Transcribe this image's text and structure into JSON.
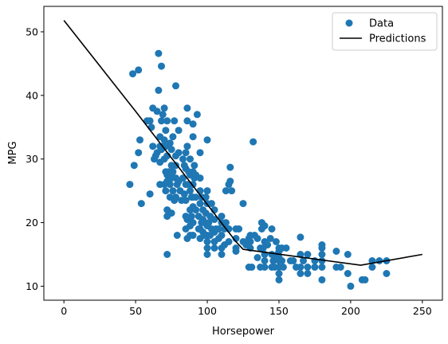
{
  "chart_data": {
    "type": "scatter",
    "xlabel": "Horsepower",
    "ylabel": "MPG",
    "xlim": [
      -14,
      264
    ],
    "ylim": [
      7.8,
      54.0
    ],
    "xticks": [
      0,
      50,
      100,
      150,
      200,
      250
    ],
    "yticks": [
      10,
      20,
      30,
      40,
      50
    ],
    "grid": false,
    "legend_position": "top-right",
    "colors": {
      "data": "#1f77b4",
      "predictions": "#000000"
    },
    "series": [
      {
        "name": "Data",
        "kind": "scatter",
        "points": [
          [
            46,
            26
          ],
          [
            48,
            43.4
          ],
          [
            49,
            29
          ],
          [
            52,
            44
          ],
          [
            52,
            31
          ],
          [
            53,
            33
          ],
          [
            54,
            23
          ],
          [
            58,
            36
          ],
          [
            60,
            36
          ],
          [
            60,
            24.5
          ],
          [
            61,
            35
          ],
          [
            62,
            32
          ],
          [
            62,
            38
          ],
          [
            63,
            30
          ],
          [
            64,
            30.5
          ],
          [
            65,
            31
          ],
          [
            65,
            37.5
          ],
          [
            66,
            40.8
          ],
          [
            66,
            46.6
          ],
          [
            67,
            33.5
          ],
          [
            67,
            32
          ],
          [
            67,
            26
          ],
          [
            67,
            29.5
          ],
          [
            68,
            44.6
          ],
          [
            68,
            36
          ],
          [
            68,
            31.5
          ],
          [
            69,
            32
          ],
          [
            69,
            37
          ],
          [
            70,
            26
          ],
          [
            70,
            38
          ],
          [
            70,
            33
          ],
          [
            70,
            30
          ],
          [
            71,
            25
          ],
          [
            71,
            28
          ],
          [
            71,
            32
          ],
          [
            71,
            34.5
          ],
          [
            72,
            30.5
          ],
          [
            72,
            27.5
          ],
          [
            72,
            36
          ],
          [
            72,
            22
          ],
          [
            72,
            15
          ],
          [
            72,
            21
          ],
          [
            72,
            26.5
          ],
          [
            73,
            28
          ],
          [
            74,
            32.5
          ],
          [
            74,
            26
          ],
          [
            74,
            24
          ],
          [
            75,
            29
          ],
          [
            75,
            31.5
          ],
          [
            75,
            27
          ],
          [
            75,
            21.5
          ],
          [
            76,
            33.5
          ],
          [
            76,
            25
          ],
          [
            76,
            28
          ],
          [
            77,
            36
          ],
          [
            77,
            23.5
          ],
          [
            78,
            30.5
          ],
          [
            78,
            29
          ],
          [
            78,
            27
          ],
          [
            78,
            24
          ],
          [
            78,
            41.5
          ],
          [
            79,
            26
          ],
          [
            79,
            18
          ],
          [
            80,
            26.5
          ],
          [
            80,
            34.5
          ],
          [
            80,
            31
          ],
          [
            81,
            25
          ],
          [
            82,
            23.5
          ],
          [
            83,
            30
          ],
          [
            83,
            27
          ],
          [
            84,
            29
          ],
          [
            84,
            24.5
          ],
          [
            85,
            31
          ],
          [
            85,
            28.5
          ],
          [
            85,
            26
          ],
          [
            85,
            23.5
          ],
          [
            85,
            21
          ],
          [
            85,
            19
          ],
          [
            86,
            36
          ],
          [
            86,
            38
          ],
          [
            86,
            32
          ],
          [
            86,
            20.5
          ],
          [
            86,
            17.5
          ],
          [
            87,
            28
          ],
          [
            87,
            26
          ],
          [
            88,
            25
          ],
          [
            88,
            30
          ],
          [
            88,
            27.5
          ],
          [
            88,
            22
          ],
          [
            88,
            19.5
          ],
          [
            88,
            18
          ],
          [
            89,
            24
          ],
          [
            89,
            21
          ],
          [
            90,
            24
          ],
          [
            90,
            26
          ],
          [
            90,
            28
          ],
          [
            90,
            35.5
          ],
          [
            90,
            33.5
          ],
          [
            90,
            20
          ],
          [
            90,
            22.5
          ],
          [
            90,
            18
          ],
          [
            91,
            29
          ],
          [
            91,
            27
          ],
          [
            92,
            27.5
          ],
          [
            92,
            24
          ],
          [
            92,
            22
          ],
          [
            93,
            37
          ],
          [
            94,
            21
          ],
          [
            94,
            19
          ],
          [
            95,
            31
          ],
          [
            95,
            27
          ],
          [
            95,
            25
          ],
          [
            95,
            23
          ],
          [
            95,
            19
          ],
          [
            95,
            17.5
          ],
          [
            96,
            24
          ],
          [
            96,
            20
          ],
          [
            97,
            22
          ],
          [
            97,
            18.5
          ],
          [
            97,
            20.5
          ],
          [
            98,
            20
          ],
          [
            98,
            18
          ],
          [
            99,
            24
          ],
          [
            99,
            21.5
          ],
          [
            100,
            23
          ],
          [
            100,
            25
          ],
          [
            100,
            19.5
          ],
          [
            100,
            17
          ],
          [
            100,
            18
          ],
          [
            100,
            33
          ],
          [
            100,
            15
          ],
          [
            100,
            16
          ],
          [
            101,
            20
          ],
          [
            102,
            21
          ],
          [
            102,
            18
          ],
          [
            103,
            19
          ],
          [
            103,
            23
          ],
          [
            105,
            20.5
          ],
          [
            105,
            22
          ],
          [
            105,
            18.5
          ],
          [
            105,
            16
          ],
          [
            105,
            17
          ],
          [
            106,
            19
          ],
          [
            108,
            19
          ],
          [
            108,
            17.5
          ],
          [
            110,
            21
          ],
          [
            110,
            20
          ],
          [
            110,
            18
          ],
          [
            110,
            16
          ],
          [
            110,
            15
          ],
          [
            112,
            19
          ],
          [
            112,
            16.5
          ],
          [
            113,
            20
          ],
          [
            113,
            25
          ],
          [
            115,
            26
          ],
          [
            115,
            19
          ],
          [
            115,
            17
          ],
          [
            116,
            26.5
          ],
          [
            116,
            28.7
          ],
          [
            117,
            25
          ],
          [
            120,
            19
          ],
          [
            120,
            17.5
          ],
          [
            120,
            16
          ],
          [
            120,
            15.5
          ],
          [
            122,
            19
          ],
          [
            125,
            23
          ],
          [
            125,
            17
          ],
          [
            127,
            16.5
          ],
          [
            129,
            17.5
          ],
          [
            129,
            13
          ],
          [
            130,
            18
          ],
          [
            130,
            17
          ],
          [
            130,
            16
          ],
          [
            131,
            13
          ],
          [
            132,
            32.7
          ],
          [
            133,
            18
          ],
          [
            135,
            17.5
          ],
          [
            135,
            14.5
          ],
          [
            137,
            16
          ],
          [
            137,
            13
          ],
          [
            138,
            20
          ],
          [
            138,
            19
          ],
          [
            139,
            16
          ],
          [
            140,
            19.5
          ],
          [
            140,
            17
          ],
          [
            140,
            15
          ],
          [
            140,
            14
          ],
          [
            140,
            13
          ],
          [
            142,
            16.5
          ],
          [
            144,
            17.5
          ],
          [
            145,
            15
          ],
          [
            145,
            13
          ],
          [
            145,
            19
          ],
          [
            146,
            14
          ],
          [
            147,
            13
          ],
          [
            148,
            17
          ],
          [
            148,
            14.5
          ],
          [
            149,
            15
          ],
          [
            150,
            14
          ],
          [
            150,
            16
          ],
          [
            150,
            15.5
          ],
          [
            150,
            13
          ],
          [
            150,
            12
          ],
          [
            150,
            11
          ],
          [
            150,
            14.5
          ],
          [
            152,
            16
          ],
          [
            152,
            14
          ],
          [
            153,
            13
          ],
          [
            155,
            16
          ],
          [
            158,
            14
          ],
          [
            160,
            14
          ],
          [
            162,
            13
          ],
          [
            165,
            15
          ],
          [
            165,
            13
          ],
          [
            165,
            17.7
          ],
          [
            165,
            12
          ],
          [
            167,
            14
          ],
          [
            170,
            13
          ],
          [
            170,
            15
          ],
          [
            170,
            12
          ],
          [
            175,
            14
          ],
          [
            175,
            13
          ],
          [
            180,
            16
          ],
          [
            180,
            15
          ],
          [
            180,
            14
          ],
          [
            180,
            11
          ],
          [
            180,
            13
          ],
          [
            180,
            16.5
          ],
          [
            190,
            15.5
          ],
          [
            190,
            13
          ],
          [
            193,
            13
          ],
          [
            198,
            12
          ],
          [
            198,
            15
          ],
          [
            200,
            10
          ],
          [
            208,
            11
          ],
          [
            210,
            11
          ],
          [
            215,
            14
          ],
          [
            215,
            13
          ],
          [
            220,
            14
          ],
          [
            225,
            14
          ],
          [
            225,
            12
          ]
        ]
      },
      {
        "name": "Predictions",
        "kind": "line",
        "points": [
          [
            0,
            51.8
          ],
          [
            50,
            37.5
          ],
          [
            120,
            17
          ],
          [
            125,
            15.8
          ],
          [
            207,
            13.3
          ],
          [
            250,
            15
          ]
        ]
      }
    ]
  }
}
